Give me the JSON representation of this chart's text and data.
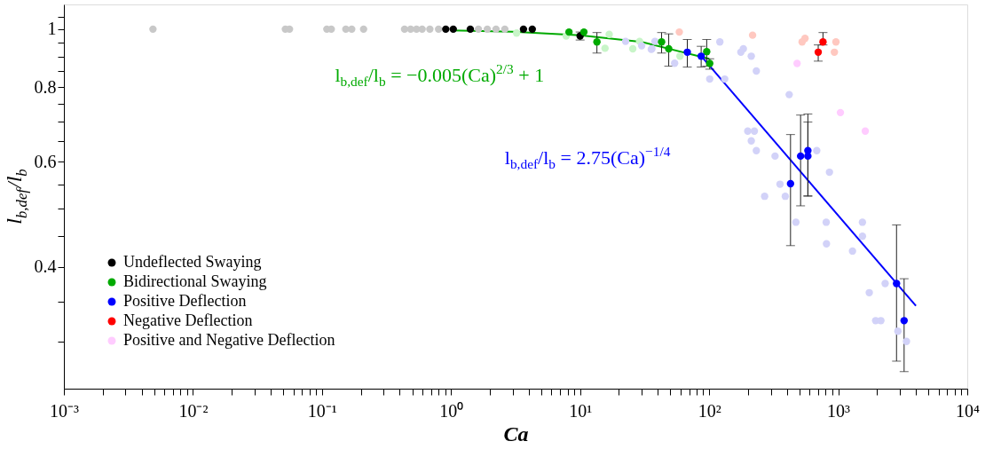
{
  "chart_data": {
    "type": "scatter",
    "xlabel": "Ca",
    "ylabel": "l$_{b,def}$/l$_{b}$",
    "log": "xy",
    "grid": false,
    "legend": "bottom left",
    "marker": "circle",
    "line_style": "solid",
    "xlim": [
      0.001,
      10000
    ],
    "xticks": [
      {
        "value": 0.001,
        "label": "10⁻³"
      },
      {
        "value": 0.002,
        "label": null
      },
      {
        "value": 0.003,
        "label": null
      },
      {
        "value": 0.004,
        "label": null
      },
      {
        "value": 0.005,
        "label": null
      },
      {
        "value": 0.006,
        "label": null
      },
      {
        "value": 0.007,
        "label": null
      },
      {
        "value": 0.008,
        "label": null
      },
      {
        "value": 0.009,
        "label": null
      },
      {
        "value": 0.01,
        "label": "10⁻²"
      },
      {
        "value": 0.02,
        "label": null
      },
      {
        "value": 0.03,
        "label": null
      },
      {
        "value": 0.04,
        "label": null
      },
      {
        "value": 0.05,
        "label": null
      },
      {
        "value": 0.06,
        "label": null
      },
      {
        "value": 0.07,
        "label": null
      },
      {
        "value": 0.08,
        "label": null
      },
      {
        "value": 0.09,
        "label": null
      },
      {
        "value": 0.1,
        "label": "10⁻¹"
      },
      {
        "value": 0.2,
        "label": null
      },
      {
        "value": 0.3,
        "label": null
      },
      {
        "value": 0.4,
        "label": null
      },
      {
        "value": 0.5,
        "label": null
      },
      {
        "value": 0.6,
        "label": null
      },
      {
        "value": 0.7,
        "label": null
      },
      {
        "value": 0.8,
        "label": null
      },
      {
        "value": 0.9,
        "label": null
      },
      {
        "value": 1,
        "label": "10⁰"
      },
      {
        "value": 2,
        "label": null
      },
      {
        "value": 3,
        "label": null
      },
      {
        "value": 4,
        "label": null
      },
      {
        "value": 5,
        "label": null
      },
      {
        "value": 6,
        "label": null
      },
      {
        "value": 7,
        "label": null
      },
      {
        "value": 8,
        "label": null
      },
      {
        "value": 9,
        "label": null
      },
      {
        "value": 10,
        "label": "10¹"
      },
      {
        "value": 20,
        "label": null
      },
      {
        "value": 30,
        "label": null
      },
      {
        "value": 40,
        "label": null
      },
      {
        "value": 50,
        "label": null
      },
      {
        "value": 60,
        "label": null
      },
      {
        "value": 70,
        "label": null
      },
      {
        "value": 80,
        "label": null
      },
      {
        "value": 90,
        "label": null
      },
      {
        "value": 100,
        "label": "10²"
      },
      {
        "value": 200,
        "label": null
      },
      {
        "value": 300,
        "label": null
      },
      {
        "value": 400,
        "label": null
      },
      {
        "value": 500,
        "label": null
      },
      {
        "value": 600,
        "label": null
      },
      {
        "value": 700,
        "label": null
      },
      {
        "value": 800,
        "label": null
      },
      {
        "value": 900,
        "label": null
      },
      {
        "value": 1000,
        "label": "10³"
      },
      {
        "value": 2000,
        "label": null
      },
      {
        "value": 3000,
        "label": null
      },
      {
        "value": 4000,
        "label": null
      },
      {
        "value": 5000,
        "label": null
      },
      {
        "value": 6000,
        "label": null
      },
      {
        "value": 7000,
        "label": null
      },
      {
        "value": 8000,
        "label": null
      },
      {
        "value": 9000,
        "label": null
      },
      {
        "value": 10000,
        "label": "10⁴"
      }
    ],
    "ylim": [
      0.25,
      1.1
    ],
    "yticks": [
      {
        "value": 0.3,
        "label": null
      },
      {
        "value": 0.35,
        "label": null
      },
      0.4,
      {
        "value": 0.45,
        "label": null
      },
      {
        "value": 0.5,
        "label": null
      },
      {
        "value": 0.55,
        "label": null
      },
      0.6,
      {
        "value": 0.65,
        "label": null
      },
      {
        "value": 0.7,
        "label": null
      },
      {
        "value": 0.75,
        "label": null
      },
      0.8,
      {
        "value": 0.85,
        "label": null
      },
      {
        "value": 0.9,
        "label": null
      },
      {
        "value": 0.95,
        "label": null
      },
      1,
      {
        "value": 1.05,
        "label": null
      }
    ],
    "series": [
      {
        "color": "#c8c8c8",
        "x": [
          0.0049,
          0.052,
          0.056,
          0.109,
          0.118,
          0.153,
          0.17,
          0.21,
          0.436,
          0.486,
          0.54,
          0.597,
          0.685,
          0.8,
          0.91,
          1.36,
          1.63,
          1.91,
          2.23,
          2.61
        ],
        "values": [
          1,
          1,
          1,
          1,
          1,
          1,
          1,
          1,
          1,
          1,
          1,
          1,
          1,
          1,
          null,
          null,
          1,
          1,
          1,
          1
        ]
      },
      {
        "color": "#c8f5c8",
        "x": [
          3.22,
          7.8,
          15.6,
          16.8,
          25.6,
          28.9,
          59.4
        ],
        "values": [
          0.985,
          0.974,
          0.929,
          0.98,
          0.927,
          0.954,
          0.901
        ]
      },
      {
        "color": "#d2d2f8",
        "x": [
          22.5,
          30,
          36,
          35.6,
          38,
          54,
          116,
          121,
          101,
          132,
          184,
          176,
          212,
          232,
          417,
          199,
          224,
          212,
          232,
          324,
          682,
          855,
          354,
          269,
          389,
          470,
          807,
          1540,
          811,
          1290,
          1540,
          2310,
          1740,
          1950,
          2140,
          2900,
          3380
        ],
        "values": [
          0.954,
          0.938,
          0.927,
          0.925,
          0.954,
          0.877,
          null,
          0.952,
          0.825,
          0.825,
          0.927,
          0.915,
          0.901,
          0.851,
          0.777,
          0.675,
          0.675,
          0.65,
          0.626,
          0.613,
          0.626,
          0.576,
          0.55,
          0.525,
          0.525,
          0.475,
          0.475,
          0.475,
          0.437,
          0.425,
          0.45,
          0.375,
          0.362,
          0.325,
          0.325,
          0.312,
          0.3
        ]
      },
      {
        "color": "#ffc8c0",
        "x": [
          58.7,
          217,
          525,
          553,
          960,
          934
        ],
        "values": [
          0.989,
          0.977,
          0.952,
          0.965,
          0.952,
          0.915
        ]
      },
      {
        "type": "line",
        "marker": "none",
        "color": "#00aa00",
        "x": [
          1,
          3,
          10,
          30,
          100
        ],
        "values": [
          0.995,
          0.99,
          0.977,
          0.952,
          0.892
        ]
      },
      {
        "type": "line",
        "marker": "none",
        "color": "#0000ff",
        "x": [
          90,
          4000
        ],
        "values": [
          0.893,
          0.344
        ]
      },
      {
        "name": "Undeflected Swaying",
        "color": "#000000",
        "x": [
          0.91,
          1.04,
          1.41,
          3.64,
          4.26,
          10
        ],
        "values": [
          1,
          1,
          1,
          1,
          1,
          0.974
        ],
        "errors": [
          null,
          null,
          null,
          null,
          null,
          0.015
        ]
      },
      {
        "name": "Bidirectional Swaying",
        "color": "#00aa00",
        "x": [
          8.2,
          10.7,
          13.5,
          42.8,
          48.6,
          95.7,
          101
        ],
        "values": [
          0.989,
          0.989,
          0.952,
          0.952,
          0.927,
          0.917,
          0.876
        ],
        "errors": [
          null,
          null,
          [
            0.912,
            0.987
          ],
          [
            0.912,
            0.987
          ],
          [
            0.867,
            0.982
          ],
          [
            0.867,
            0.961
          ],
          [
            0.857,
            0.892
          ]
        ]
      },
      {
        "name": "Positive Deflection",
        "color": "#0000ff",
        "x": [
          67.7,
          86.7,
          427,
          511,
          582,
          582,
          2830,
          3240
        ],
        "values": [
          0.915,
          0.901,
          0.551,
          0.613,
          0.626,
          0.613,
          0.375,
          0.325
        ],
        "errors": [
          [
            0.864,
            0.961
          ],
          [
            0.864,
            0.936
          ],
          [
            0.434,
            0.666
          ],
          [
            0.506,
            0.718
          ],
          [
            0.526,
            0.721
          ],
          [
            0.525,
            0.699
          ],
          [
            0.278,
            0.47
          ],
          [
            0.267,
            0.382
          ]
        ]
      },
      {
        "name": "Negative Deflection",
        "color": "#ff0000",
        "x": [
          700,
          762
        ],
        "values": [
          0.915,
          0.952
        ],
        "errors": [
          [
            0.884,
            0.941
          ],
          [
            0.941,
            0.987
          ]
        ]
      },
      {
        "name": "Positive and Negative Deflection",
        "color": "#ffccff",
        "x": [
          480,
          1040,
          1620
        ],
        "values": [
          0.876,
          0.725,
          0.675
        ]
      }
    ],
    "annotations": [
      "l$_{b,def}$/l$_{b}$ = −0.005(Ca)$^{2/3}$ + 1",
      "l$_{b,def}$/l$_{b}$ = 2.75(Ca)$^{−1/4}$"
    ]
  }
}
